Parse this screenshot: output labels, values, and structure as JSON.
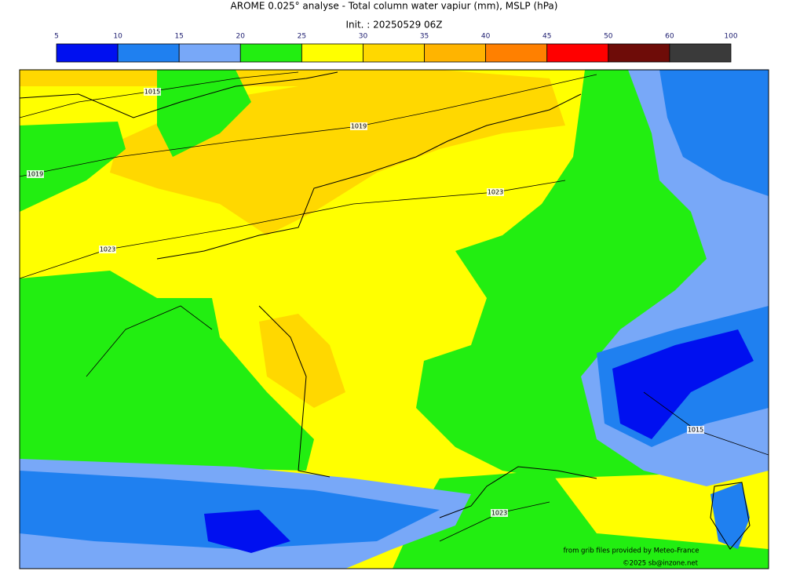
{
  "header": {
    "title": "AROME 0.025° analyse - Total column water vapiur (mm), MSLP (hPa)",
    "subtitle": "Init. : 20250529 06Z"
  },
  "colorbar": {
    "ticks": [
      5,
      10,
      15,
      20,
      25,
      30,
      35,
      40,
      45,
      50,
      60,
      100
    ],
    "colors": [
      "#0010f0",
      "#1f80f0",
      "#78a8f8",
      "#22ee11",
      "#ffff00",
      "#ffd800",
      "#ffb400",
      "#ff8000",
      "#ff0000",
      "#6e0c08",
      "#3a3a3a"
    ]
  },
  "isobar_labels": [
    1015,
    1019,
    1019,
    1023,
    1023,
    1015,
    1023
  ],
  "credits": [
    "from grib files provided by Meteo-France",
    "©2025 sb@inzone.net"
  ]
}
